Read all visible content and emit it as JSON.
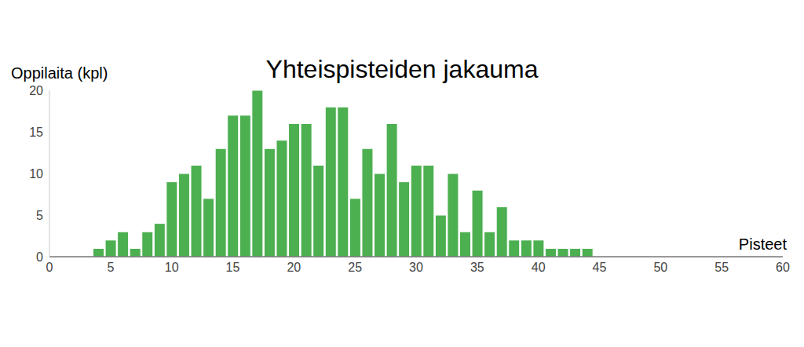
{
  "chart_data": {
    "type": "histogram",
    "title": "Yhteispisteiden jakauma",
    "y_label": "Oppilaita (kpl)",
    "x_label": "Pisteet",
    "bins": [
      3.5,
      4.5,
      5.5,
      6.5,
      7.5,
      8.5,
      9.5,
      10.5,
      11.5,
      12.5,
      13.5,
      14.5,
      15.5,
      16.5,
      17.5,
      18.5,
      19.5,
      20.5,
      21.5,
      22.5,
      23.5,
      24.5,
      25.5,
      26.5,
      27.5,
      28.5,
      29.5,
      30.5,
      31.5,
      32.5,
      33.5,
      34.5,
      35.5,
      36.5,
      37.5,
      38.5,
      39.5,
      40.5,
      41.5,
      42.5,
      43.5,
      44.5
    ],
    "values": [
      1,
      2,
      3,
      1,
      3,
      4,
      9,
      10,
      11,
      7,
      13,
      17,
      17,
      20,
      13,
      14,
      16,
      16,
      11,
      18,
      18,
      7,
      13,
      10,
      16,
      9,
      11,
      11,
      5,
      10,
      3,
      8,
      3,
      6,
      2,
      2,
      2,
      1,
      1,
      1,
      1
    ],
    "color": "#4caf50",
    "xlim": [
      0,
      60
    ],
    "xticks": [
      0,
      5,
      10,
      15,
      20,
      25,
      30,
      35,
      40,
      45,
      50,
      55,
      60
    ],
    "ylim": [
      0,
      20
    ],
    "yticks": [
      0,
      5,
      10,
      15,
      20
    ],
    "grid": false
  }
}
